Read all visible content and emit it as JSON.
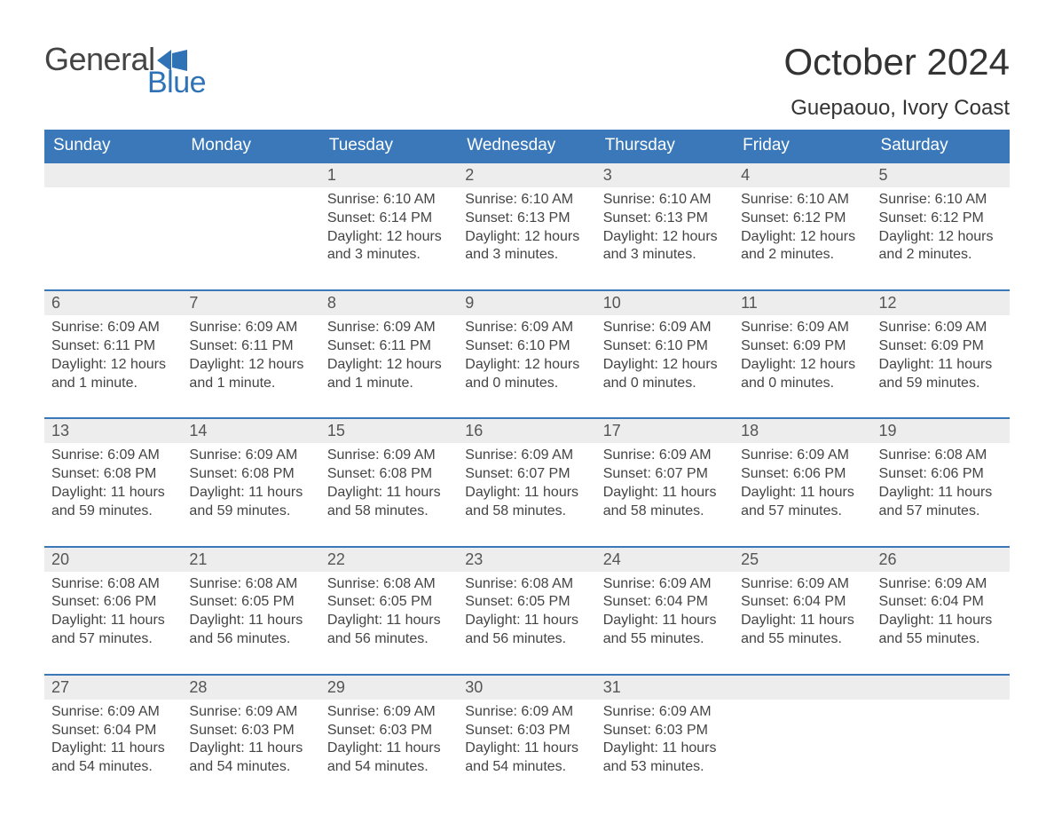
{
  "brand": {
    "word1": "General",
    "word2": "Blue"
  },
  "title": {
    "month": "October 2024",
    "location": "Guepaouo, Ivory Coast"
  },
  "style": {
    "header_bg": "#3a78b9",
    "header_text": "#ffffff",
    "strip_bg": "#ededed",
    "strip_border": "#3a78b9",
    "body_text": "#444444",
    "brand_blue": "#2f73b6",
    "page_bg": "#ffffff",
    "title_fontsize": 42,
    "location_fontsize": 24,
    "day_fontsize": 18,
    "body_fontsize": 16
  },
  "table": {
    "type": "calendar",
    "columns": [
      "Sunday",
      "Monday",
      "Tuesday",
      "Wednesday",
      "Thursday",
      "Friday",
      "Saturday"
    ],
    "weeks": [
      [
        {},
        {},
        {
          "n": "1",
          "sr": "Sunrise: 6:10 AM",
          "ss": "Sunset: 6:14 PM",
          "d1": "Daylight: 12 hours",
          "d2": "and 3 minutes."
        },
        {
          "n": "2",
          "sr": "Sunrise: 6:10 AM",
          "ss": "Sunset: 6:13 PM",
          "d1": "Daylight: 12 hours",
          "d2": "and 3 minutes."
        },
        {
          "n": "3",
          "sr": "Sunrise: 6:10 AM",
          "ss": "Sunset: 6:13 PM",
          "d1": "Daylight: 12 hours",
          "d2": "and 3 minutes."
        },
        {
          "n": "4",
          "sr": "Sunrise: 6:10 AM",
          "ss": "Sunset: 6:12 PM",
          "d1": "Daylight: 12 hours",
          "d2": "and 2 minutes."
        },
        {
          "n": "5",
          "sr": "Sunrise: 6:10 AM",
          "ss": "Sunset: 6:12 PM",
          "d1": "Daylight: 12 hours",
          "d2": "and 2 minutes."
        }
      ],
      [
        {
          "n": "6",
          "sr": "Sunrise: 6:09 AM",
          "ss": "Sunset: 6:11 PM",
          "d1": "Daylight: 12 hours",
          "d2": "and 1 minute."
        },
        {
          "n": "7",
          "sr": "Sunrise: 6:09 AM",
          "ss": "Sunset: 6:11 PM",
          "d1": "Daylight: 12 hours",
          "d2": "and 1 minute."
        },
        {
          "n": "8",
          "sr": "Sunrise: 6:09 AM",
          "ss": "Sunset: 6:11 PM",
          "d1": "Daylight: 12 hours",
          "d2": "and 1 minute."
        },
        {
          "n": "9",
          "sr": "Sunrise: 6:09 AM",
          "ss": "Sunset: 6:10 PM",
          "d1": "Daylight: 12 hours",
          "d2": "and 0 minutes."
        },
        {
          "n": "10",
          "sr": "Sunrise: 6:09 AM",
          "ss": "Sunset: 6:10 PM",
          "d1": "Daylight: 12 hours",
          "d2": "and 0 minutes."
        },
        {
          "n": "11",
          "sr": "Sunrise: 6:09 AM",
          "ss": "Sunset: 6:09 PM",
          "d1": "Daylight: 12 hours",
          "d2": "and 0 minutes."
        },
        {
          "n": "12",
          "sr": "Sunrise: 6:09 AM",
          "ss": "Sunset: 6:09 PM",
          "d1": "Daylight: 11 hours",
          "d2": "and 59 minutes."
        }
      ],
      [
        {
          "n": "13",
          "sr": "Sunrise: 6:09 AM",
          "ss": "Sunset: 6:08 PM",
          "d1": "Daylight: 11 hours",
          "d2": "and 59 minutes."
        },
        {
          "n": "14",
          "sr": "Sunrise: 6:09 AM",
          "ss": "Sunset: 6:08 PM",
          "d1": "Daylight: 11 hours",
          "d2": "and 59 minutes."
        },
        {
          "n": "15",
          "sr": "Sunrise: 6:09 AM",
          "ss": "Sunset: 6:08 PM",
          "d1": "Daylight: 11 hours",
          "d2": "and 58 minutes."
        },
        {
          "n": "16",
          "sr": "Sunrise: 6:09 AM",
          "ss": "Sunset: 6:07 PM",
          "d1": "Daylight: 11 hours",
          "d2": "and 58 minutes."
        },
        {
          "n": "17",
          "sr": "Sunrise: 6:09 AM",
          "ss": "Sunset: 6:07 PM",
          "d1": "Daylight: 11 hours",
          "d2": "and 58 minutes."
        },
        {
          "n": "18",
          "sr": "Sunrise: 6:09 AM",
          "ss": "Sunset: 6:06 PM",
          "d1": "Daylight: 11 hours",
          "d2": "and 57 minutes."
        },
        {
          "n": "19",
          "sr": "Sunrise: 6:08 AM",
          "ss": "Sunset: 6:06 PM",
          "d1": "Daylight: 11 hours",
          "d2": "and 57 minutes."
        }
      ],
      [
        {
          "n": "20",
          "sr": "Sunrise: 6:08 AM",
          "ss": "Sunset: 6:06 PM",
          "d1": "Daylight: 11 hours",
          "d2": "and 57 minutes."
        },
        {
          "n": "21",
          "sr": "Sunrise: 6:08 AM",
          "ss": "Sunset: 6:05 PM",
          "d1": "Daylight: 11 hours",
          "d2": "and 56 minutes."
        },
        {
          "n": "22",
          "sr": "Sunrise: 6:08 AM",
          "ss": "Sunset: 6:05 PM",
          "d1": "Daylight: 11 hours",
          "d2": "and 56 minutes."
        },
        {
          "n": "23",
          "sr": "Sunrise: 6:08 AM",
          "ss": "Sunset: 6:05 PM",
          "d1": "Daylight: 11 hours",
          "d2": "and 56 minutes."
        },
        {
          "n": "24",
          "sr": "Sunrise: 6:09 AM",
          "ss": "Sunset: 6:04 PM",
          "d1": "Daylight: 11 hours",
          "d2": "and 55 minutes."
        },
        {
          "n": "25",
          "sr": "Sunrise: 6:09 AM",
          "ss": "Sunset: 6:04 PM",
          "d1": "Daylight: 11 hours",
          "d2": "and 55 minutes."
        },
        {
          "n": "26",
          "sr": "Sunrise: 6:09 AM",
          "ss": "Sunset: 6:04 PM",
          "d1": "Daylight: 11 hours",
          "d2": "and 55 minutes."
        }
      ],
      [
        {
          "n": "27",
          "sr": "Sunrise: 6:09 AM",
          "ss": "Sunset: 6:04 PM",
          "d1": "Daylight: 11 hours",
          "d2": "and 54 minutes."
        },
        {
          "n": "28",
          "sr": "Sunrise: 6:09 AM",
          "ss": "Sunset: 6:03 PM",
          "d1": "Daylight: 11 hours",
          "d2": "and 54 minutes."
        },
        {
          "n": "29",
          "sr": "Sunrise: 6:09 AM",
          "ss": "Sunset: 6:03 PM",
          "d1": "Daylight: 11 hours",
          "d2": "and 54 minutes."
        },
        {
          "n": "30",
          "sr": "Sunrise: 6:09 AM",
          "ss": "Sunset: 6:03 PM",
          "d1": "Daylight: 11 hours",
          "d2": "and 54 minutes."
        },
        {
          "n": "31",
          "sr": "Sunrise: 6:09 AM",
          "ss": "Sunset: 6:03 PM",
          "d1": "Daylight: 11 hours",
          "d2": "and 53 minutes."
        },
        {},
        {}
      ]
    ]
  }
}
